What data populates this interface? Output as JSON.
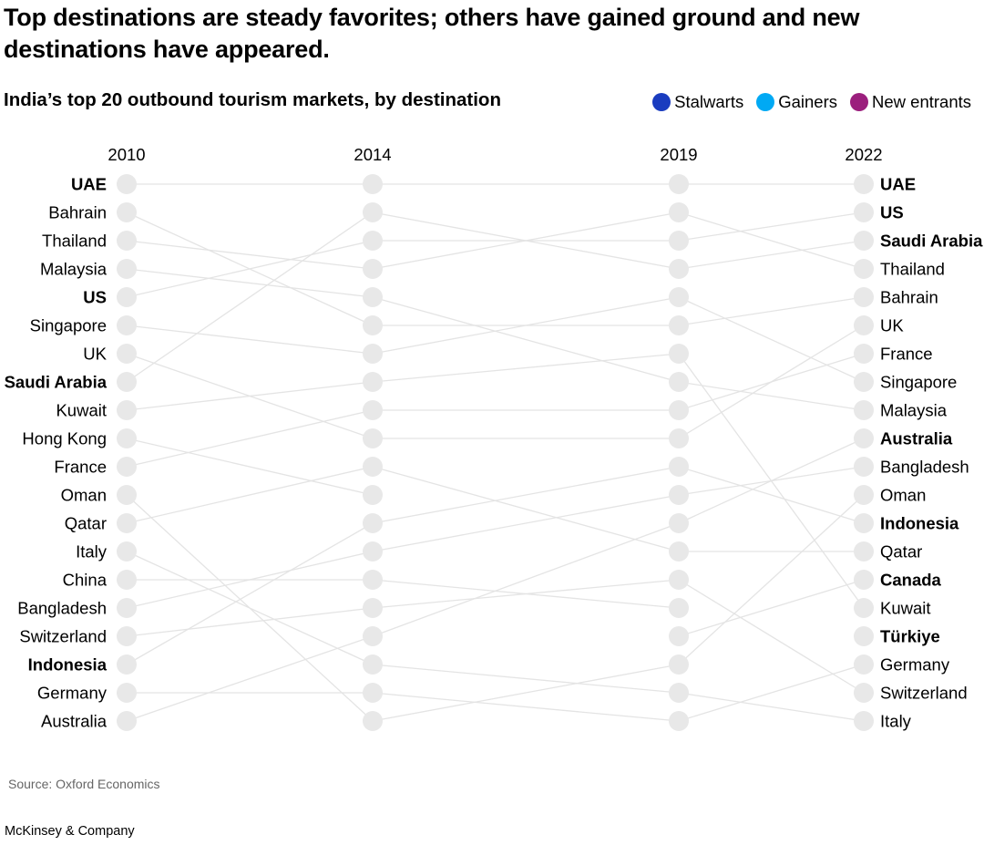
{
  "title": "Top destinations are steady favorites; others have gained ground and new destinations have appeared.",
  "subtitle": "India’s top 20 outbound tourism markets, by destination",
  "legend": [
    {
      "label": "Stalwarts",
      "color": "#1a3cbf"
    },
    {
      "label": "Gainers",
      "color": "#00a9f4"
    },
    {
      "label": "New entrants",
      "color": "#9b1f7d"
    }
  ],
  "source": "Source: Oxford Economics",
  "footer": "McKinsey & Company",
  "chart_data": {
    "type": "line",
    "subtype": "bump",
    "years": [
      "2010",
      "2014",
      "2019",
      "2022"
    ],
    "y_axis": "rank (1 = top)",
    "ylim": [
      1,
      20
    ],
    "dot_color": "#e8e8e8",
    "line_color": "#e4e4e4",
    "series": [
      {
        "name": "UAE",
        "ranks": [
          1,
          1,
          1,
          1
        ],
        "bold_2010": true,
        "bold_2022": true
      },
      {
        "name": "Bahrain",
        "ranks": [
          2,
          6,
          6,
          5
        ],
        "bold_2010": false,
        "bold_2022": false
      },
      {
        "name": "Thailand",
        "ranks": [
          3,
          4,
          2,
          4
        ],
        "bold_2010": false,
        "bold_2022": false
      },
      {
        "name": "Malaysia",
        "ranks": [
          4,
          5,
          8,
          9
        ],
        "bold_2010": false,
        "bold_2022": false
      },
      {
        "name": "US",
        "ranks": [
          5,
          3,
          3,
          2
        ],
        "bold_2010": true,
        "bold_2022": true
      },
      {
        "name": "Singapore",
        "ranks": [
          6,
          7,
          5,
          8
        ],
        "bold_2010": false,
        "bold_2022": false
      },
      {
        "name": "UK",
        "ranks": [
          7,
          10,
          10,
          6
        ],
        "bold_2010": false,
        "bold_2022": false
      },
      {
        "name": "Saudi Arabia",
        "ranks": [
          8,
          2,
          4,
          3
        ],
        "bold_2010": true,
        "bold_2022": true
      },
      {
        "name": "Kuwait",
        "ranks": [
          9,
          8,
          7,
          16
        ],
        "bold_2010": false,
        "bold_2022": false
      },
      {
        "name": "Hong Kong",
        "ranks": [
          10,
          12,
          null,
          null
        ],
        "bold_2010": false,
        "bold_2022": false
      },
      {
        "name": "France",
        "ranks": [
          11,
          9,
          9,
          7
        ],
        "bold_2010": false,
        "bold_2022": false
      },
      {
        "name": "Oman",
        "ranks": [
          12,
          20,
          18,
          12
        ],
        "bold_2010": false,
        "bold_2022": false
      },
      {
        "name": "Qatar",
        "ranks": [
          13,
          11,
          14,
          14
        ],
        "bold_2010": false,
        "bold_2022": false
      },
      {
        "name": "Italy",
        "ranks": [
          14,
          18,
          19,
          20
        ],
        "bold_2010": false,
        "bold_2022": false
      },
      {
        "name": "China",
        "ranks": [
          15,
          15,
          16,
          null
        ],
        "bold_2010": false,
        "bold_2022": false
      },
      {
        "name": "Bangladesh",
        "ranks": [
          16,
          14,
          12,
          11
        ],
        "bold_2010": false,
        "bold_2022": false
      },
      {
        "name": "Switzerland",
        "ranks": [
          17,
          16,
          15,
          19
        ],
        "bold_2010": false,
        "bold_2022": false
      },
      {
        "name": "Indonesia",
        "ranks": [
          18,
          13,
          11,
          13
        ],
        "bold_2010": true,
        "bold_2022": true
      },
      {
        "name": "Germany",
        "ranks": [
          19,
          19,
          20,
          18
        ],
        "bold_2010": false,
        "bold_2022": false
      },
      {
        "name": "Australia",
        "ranks": [
          20,
          17,
          13,
          10
        ],
        "bold_2010": false,
        "bold_2022": true
      },
      {
        "name": "Canada",
        "ranks": [
          null,
          null,
          17,
          15
        ],
        "bold_2010": false,
        "bold_2022": true
      },
      {
        "name": "Türkiye",
        "ranks": [
          null,
          null,
          null,
          17
        ],
        "bold_2010": false,
        "bold_2022": true
      }
    ]
  }
}
